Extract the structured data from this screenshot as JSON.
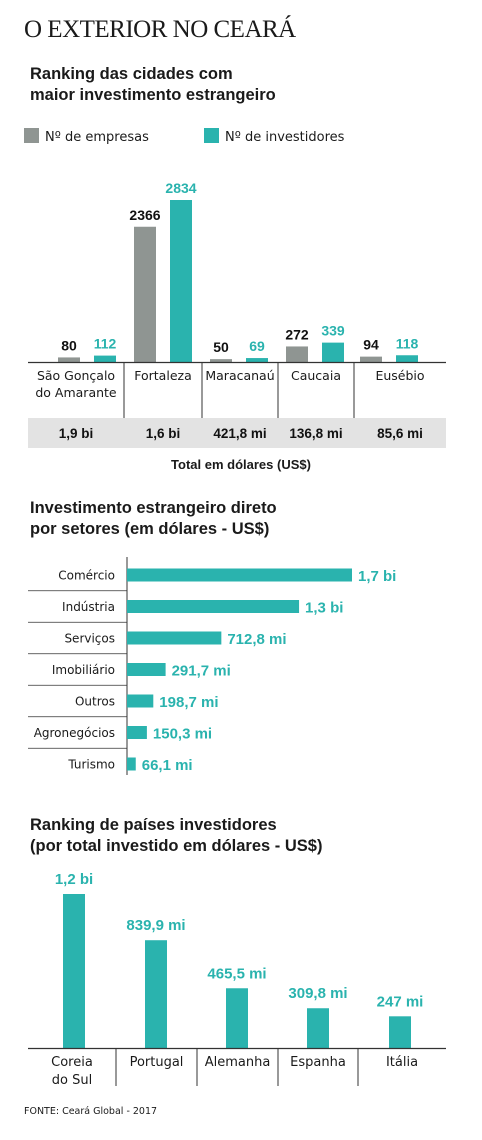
{
  "header": {
    "title": "O EXTERIOR NO CEARÁ"
  },
  "colors": {
    "gray": "#8f9592",
    "teal": "#2ab3ae",
    "band": "#e3e3e3",
    "axis": "#333333"
  },
  "chart_data": [
    {
      "type": "bar",
      "title_lines": [
        "Ranking das cidades com",
        "maior investimento estrangeiro"
      ],
      "categories": [
        [
          "São Gonçalo",
          "do Amarante"
        ],
        [
          "Fortaleza"
        ],
        [
          "Maracanaú"
        ],
        [
          "Caucaia"
        ],
        [
          "Eusébio"
        ]
      ],
      "series": [
        {
          "name": "Nº de empresas",
          "values": [
            80,
            2366,
            50,
            272,
            94
          ]
        },
        {
          "name": "Nº de investidores",
          "values": [
            112,
            2834,
            69,
            339,
            118
          ]
        }
      ],
      "totals": [
        "1,9 bi",
        "1,6 bi",
        "421,8 mi",
        "136,8 mi",
        "85,6 mi"
      ],
      "totals_caption": "Total em dólares (US$)",
      "ylim": [
        0,
        2834
      ]
    },
    {
      "type": "bar",
      "orientation": "horizontal",
      "title_lines": [
        "Investimento estrangeiro direto",
        "por setores (em dólares - US$)"
      ],
      "categories": [
        "Comércio",
        "Indústria",
        "Serviços",
        "Imobiliário",
        "Outros",
        "Agronegócios",
        "Turismo"
      ],
      "values": [
        1700,
        1300,
        712.8,
        291.7,
        198.7,
        150.3,
        66.1
      ],
      "labels": [
        "1,7 bi",
        "1,3 bi",
        "712,8 mi",
        "291,7 mi",
        "198,7 mi",
        "150,3 mi",
        "66,1 mi"
      ],
      "unit": "milhões de US$"
    },
    {
      "type": "bar",
      "title_lines": [
        "Ranking de países investidores",
        "(por total investido em dólares - US$)"
      ],
      "categories": [
        [
          "Coreia",
          "do Sul"
        ],
        [
          "Portugal"
        ],
        [
          "Alemanha"
        ],
        [
          "Espanha"
        ],
        [
          "Itália"
        ]
      ],
      "values": [
        1200,
        839.9,
        465.5,
        309.8,
        247
      ],
      "labels": [
        "1,2 bi",
        "839,9 mi",
        "465,5 mi",
        "309,8 mi",
        "247 mi"
      ],
      "unit": "milhões de US$"
    }
  ],
  "footer": {
    "source": "FONTE: Ceará Global - 2017"
  }
}
